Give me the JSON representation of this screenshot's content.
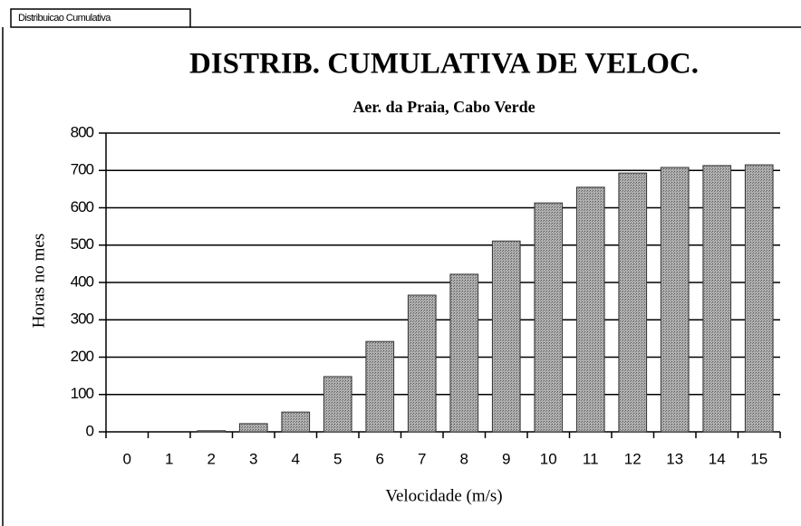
{
  "sheet_tab": "Distribuicao Cumulativa",
  "chart_data": {
    "type": "bar",
    "title": "DISTRIB. CUMULATIVA DE VELOC.",
    "subtitle": "Aer. da Praia, Cabo Verde",
    "x_label": "Velocidade (m/s)",
    "y_label": "Horas no mes",
    "categories": [
      "0",
      "1",
      "2",
      "3",
      "4",
      "5",
      "6",
      "7",
      "8",
      "9",
      "10",
      "11",
      "12",
      "13",
      "14",
      "15"
    ],
    "values": [
      0,
      0,
      3,
      22,
      53,
      148,
      242,
      366,
      422,
      511,
      613,
      655,
      693,
      708,
      713,
      715
    ],
    "color": "#9a9a9a",
    "ylim": [
      0,
      800
    ],
    "yticks": [
      0,
      100,
      200,
      300,
      400,
      500,
      600,
      700,
      800
    ],
    "grid": true
  }
}
